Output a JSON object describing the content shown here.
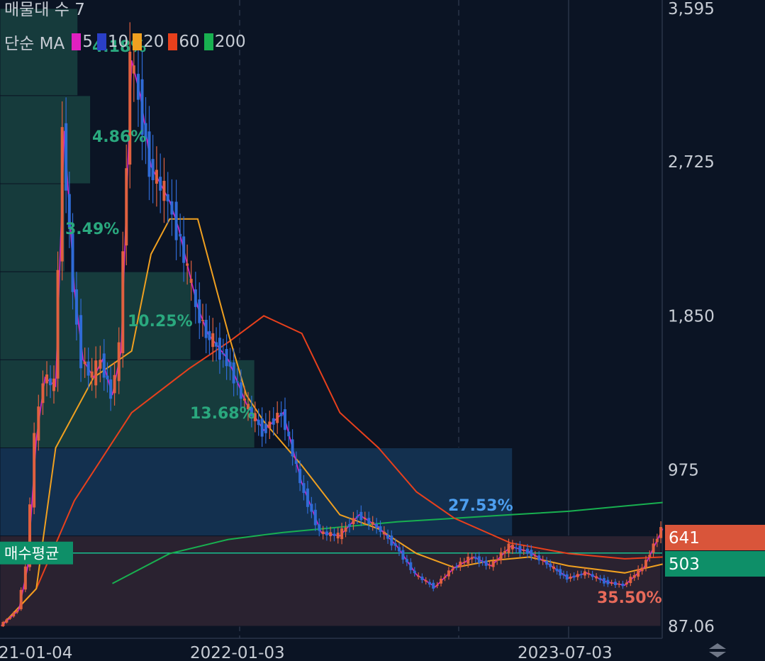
{
  "header": {
    "title": "매물대 수 7",
    "ma_label": "단순 MA"
  },
  "colors": {
    "background": "#0b1424",
    "up": "#e0603f",
    "down": "#2f6bd6",
    "ma5": "#e020c0",
    "ma10": "#2a3fc8",
    "ma20": "#f0a020",
    "ma60": "#e8401c",
    "ma200": "#18b050",
    "profile_green": "#163b3c",
    "profile_blue": "#13304f",
    "profile_red": "#2a2230",
    "price_tag": "#d9553a",
    "avg_tag": "#0e8f68",
    "avg_line": "#18c090"
  },
  "chart_data": {
    "type": "candlestick",
    "title": "매물대 수 7",
    "legend": [
      {
        "label": "5",
        "color": "#e020c0"
      },
      {
        "label": "10",
        "color": "#2a3fc8"
      },
      {
        "label": "20",
        "color": "#f0a020"
      },
      {
        "label": "60",
        "color": "#e8401c"
      },
      {
        "label": "200",
        "color": "#18b050"
      }
    ],
    "y_ticks": [
      "3,595",
      "2,725",
      "1,850",
      "975",
      "87.06"
    ],
    "ylim": [
      87.06,
      3595
    ],
    "x_ticks": [
      "2021-01-04",
      "2022-01-03",
      "2023-07-03"
    ],
    "x_tick_display": [
      "21-01-04",
      "2022-01-03",
      "2023-07-03"
    ],
    "current_price": "641",
    "average_buy_price": "503",
    "average_buy_label": "매수평균",
    "volume_profile": [
      {
        "label": "4.18%",
        "range": [
          3100,
          3595
        ],
        "pct": 4.18
      },
      {
        "label": "4.86%",
        "range": [
          2600,
          3100
        ],
        "pct": 4.86
      },
      {
        "label": "3.49%",
        "range": [
          2100,
          2600
        ],
        "pct": 3.49
      },
      {
        "label": "10.25%",
        "range": [
          1600,
          2100
        ],
        "pct": 10.25
      },
      {
        "label": "13.68%",
        "range": [
          1100,
          1600
        ],
        "pct": 13.68
      },
      {
        "label": "27.53%",
        "range": [
          600,
          1100
        ],
        "pct": 27.53
      },
      {
        "label": "35.50%",
        "range": [
          87.06,
          600
        ],
        "pct": 35.5
      }
    ],
    "price_path": [
      {
        "date": "2021-01-04",
        "price": 90
      },
      {
        "date": "2021-02-01",
        "price": 180
      },
      {
        "date": "2021-02-15",
        "price": 420
      },
      {
        "date": "2021-03-01",
        "price": 1150
      },
      {
        "date": "2021-03-15",
        "price": 1500
      },
      {
        "date": "2021-04-01",
        "price": 1450
      },
      {
        "date": "2021-04-15",
        "price": 2900
      },
      {
        "date": "2021-05-01",
        "price": 2000
      },
      {
        "date": "2021-05-15",
        "price": 1600
      },
      {
        "date": "2021-06-01",
        "price": 1500
      },
      {
        "date": "2021-06-15",
        "price": 1600
      },
      {
        "date": "2021-07-01",
        "price": 1400
      },
      {
        "date": "2021-07-15",
        "price": 1650
      },
      {
        "date": "2021-08-01",
        "price": 3300
      },
      {
        "date": "2021-08-15",
        "price": 3100
      },
      {
        "date": "2021-09-01",
        "price": 2700
      },
      {
        "date": "2021-10-01",
        "price": 2500
      },
      {
        "date": "2021-10-15",
        "price": 2350
      },
      {
        "date": "2021-11-01",
        "price": 2100
      },
      {
        "date": "2021-11-15",
        "price": 1900
      },
      {
        "date": "2021-12-01",
        "price": 1750
      },
      {
        "date": "2022-01-03",
        "price": 1600
      },
      {
        "date": "2022-02-01",
        "price": 1350
      },
      {
        "date": "2022-03-01",
        "price": 1200
      },
      {
        "date": "2022-04-01",
        "price": 1300
      },
      {
        "date": "2022-05-01",
        "price": 900
      },
      {
        "date": "2022-06-01",
        "price": 620
      },
      {
        "date": "2022-07-01",
        "price": 600
      },
      {
        "date": "2022-08-01",
        "price": 720
      },
      {
        "date": "2022-09-01",
        "price": 650
      },
      {
        "date": "2022-10-01",
        "price": 540
      },
      {
        "date": "2022-11-01",
        "price": 380
      },
      {
        "date": "2022-12-01",
        "price": 310
      },
      {
        "date": "2023-01-01",
        "price": 420
      },
      {
        "date": "2023-02-01",
        "price": 480
      },
      {
        "date": "2023-03-01",
        "price": 430
      },
      {
        "date": "2023-04-01",
        "price": 540
      },
      {
        "date": "2023-05-01",
        "price": 510
      },
      {
        "date": "2023-06-01",
        "price": 440
      },
      {
        "date": "2023-07-03",
        "price": 360
      },
      {
        "date": "2023-08-01",
        "price": 390
      },
      {
        "date": "2023-09-01",
        "price": 340
      },
      {
        "date": "2023-10-01",
        "price": 320
      },
      {
        "date": "2023-11-01",
        "price": 420
      },
      {
        "date": "2023-12-01",
        "price": 641
      }
    ],
    "ma20_path": [
      {
        "date": "2021-01-04",
        "price": 90
      },
      {
        "date": "2021-03-01",
        "price": 300
      },
      {
        "date": "2021-04-01",
        "price": 1100
      },
      {
        "date": "2021-06-01",
        "price": 1500
      },
      {
        "date": "2021-08-01",
        "price": 1650
      },
      {
        "date": "2021-09-01",
        "price": 2200
      },
      {
        "date": "2021-10-01",
        "price": 2400
      },
      {
        "date": "2021-11-15",
        "price": 2400
      },
      {
        "date": "2021-12-15",
        "price": 2000
      },
      {
        "date": "2022-01-03",
        "price": 1750
      },
      {
        "date": "2022-02-01",
        "price": 1400
      },
      {
        "date": "2022-03-01",
        "price": 1250
      },
      {
        "date": "2022-05-01",
        "price": 1000
      },
      {
        "date": "2022-07-01",
        "price": 720
      },
      {
        "date": "2022-09-01",
        "price": 640
      },
      {
        "date": "2022-11-01",
        "price": 500
      },
      {
        "date": "2023-01-01",
        "price": 420
      },
      {
        "date": "2023-03-01",
        "price": 460
      },
      {
        "date": "2023-05-01",
        "price": 480
      },
      {
        "date": "2023-07-03",
        "price": 430
      },
      {
        "date": "2023-10-01",
        "price": 390
      },
      {
        "date": "2023-12-01",
        "price": 440
      }
    ],
    "ma60_path": [
      {
        "date": "2021-01-04",
        "price": 87.06
      },
      {
        "date": "2021-03-01",
        "price": 300
      },
      {
        "date": "2021-05-01",
        "price": 800
      },
      {
        "date": "2021-08-01",
        "price": 1300
      },
      {
        "date": "2021-11-01",
        "price": 1550
      },
      {
        "date": "2022-01-03",
        "price": 1700
      },
      {
        "date": "2022-03-01",
        "price": 1850
      },
      {
        "date": "2022-05-01",
        "price": 1750
      },
      {
        "date": "2022-07-01",
        "price": 1300
      },
      {
        "date": "2022-09-01",
        "price": 1100
      },
      {
        "date": "2022-11-01",
        "price": 850
      },
      {
        "date": "2023-01-01",
        "price": 700
      },
      {
        "date": "2023-04-01",
        "price": 560
      },
      {
        "date": "2023-07-03",
        "price": 500
      },
      {
        "date": "2023-10-01",
        "price": 470
      },
      {
        "date": "2023-12-01",
        "price": 480
      }
    ],
    "ma200_path": [
      {
        "date": "2021-07-01",
        "price": 330
      },
      {
        "date": "2021-10-01",
        "price": 500
      },
      {
        "date": "2022-01-03",
        "price": 580
      },
      {
        "date": "2022-04-01",
        "price": 620
      },
      {
        "date": "2022-07-01",
        "price": 650
      },
      {
        "date": "2022-10-01",
        "price": 680
      },
      {
        "date": "2023-01-01",
        "price": 700
      },
      {
        "date": "2023-04-01",
        "price": 720
      },
      {
        "date": "2023-07-03",
        "price": 740
      },
      {
        "date": "2023-12-01",
        "price": 790
      }
    ]
  }
}
